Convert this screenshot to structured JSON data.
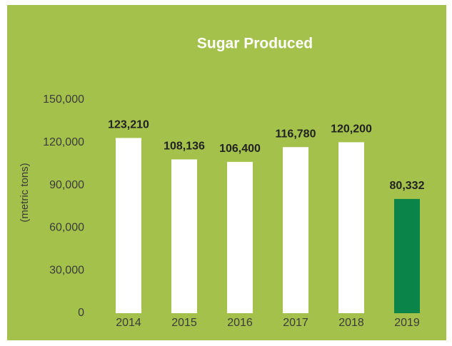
{
  "chart_data": {
    "type": "bar",
    "title": "Sugar Produced",
    "y_label": "(metric tons)",
    "categories": [
      "2014",
      "2015",
      "2016",
      "2017",
      "2018",
      "2019"
    ],
    "values": [
      123210,
      108136,
      106400,
      116780,
      120200,
      80332
    ],
    "value_labels": [
      "123,210",
      "108,136",
      "106,400",
      "116,780",
      "120,200",
      "80,332"
    ],
    "colors": [
      "#ffffff",
      "#ffffff",
      "#ffffff",
      "#ffffff",
      "#ffffff",
      "#0b8449"
    ],
    "background": "#a4c24b",
    "ylim": [
      0,
      150000
    ],
    "yticks": [
      0,
      {
        "value": 30000,
        "label": "30,000"
      },
      {
        "value": 60000,
        "label": "60,000"
      },
      {
        "value": 90000,
        "label": "90,000"
      },
      {
        "value": 120000,
        "label": "120,000"
      },
      {
        "value": 150000,
        "label": "150,000"
      }
    ],
    "grid": false
  }
}
